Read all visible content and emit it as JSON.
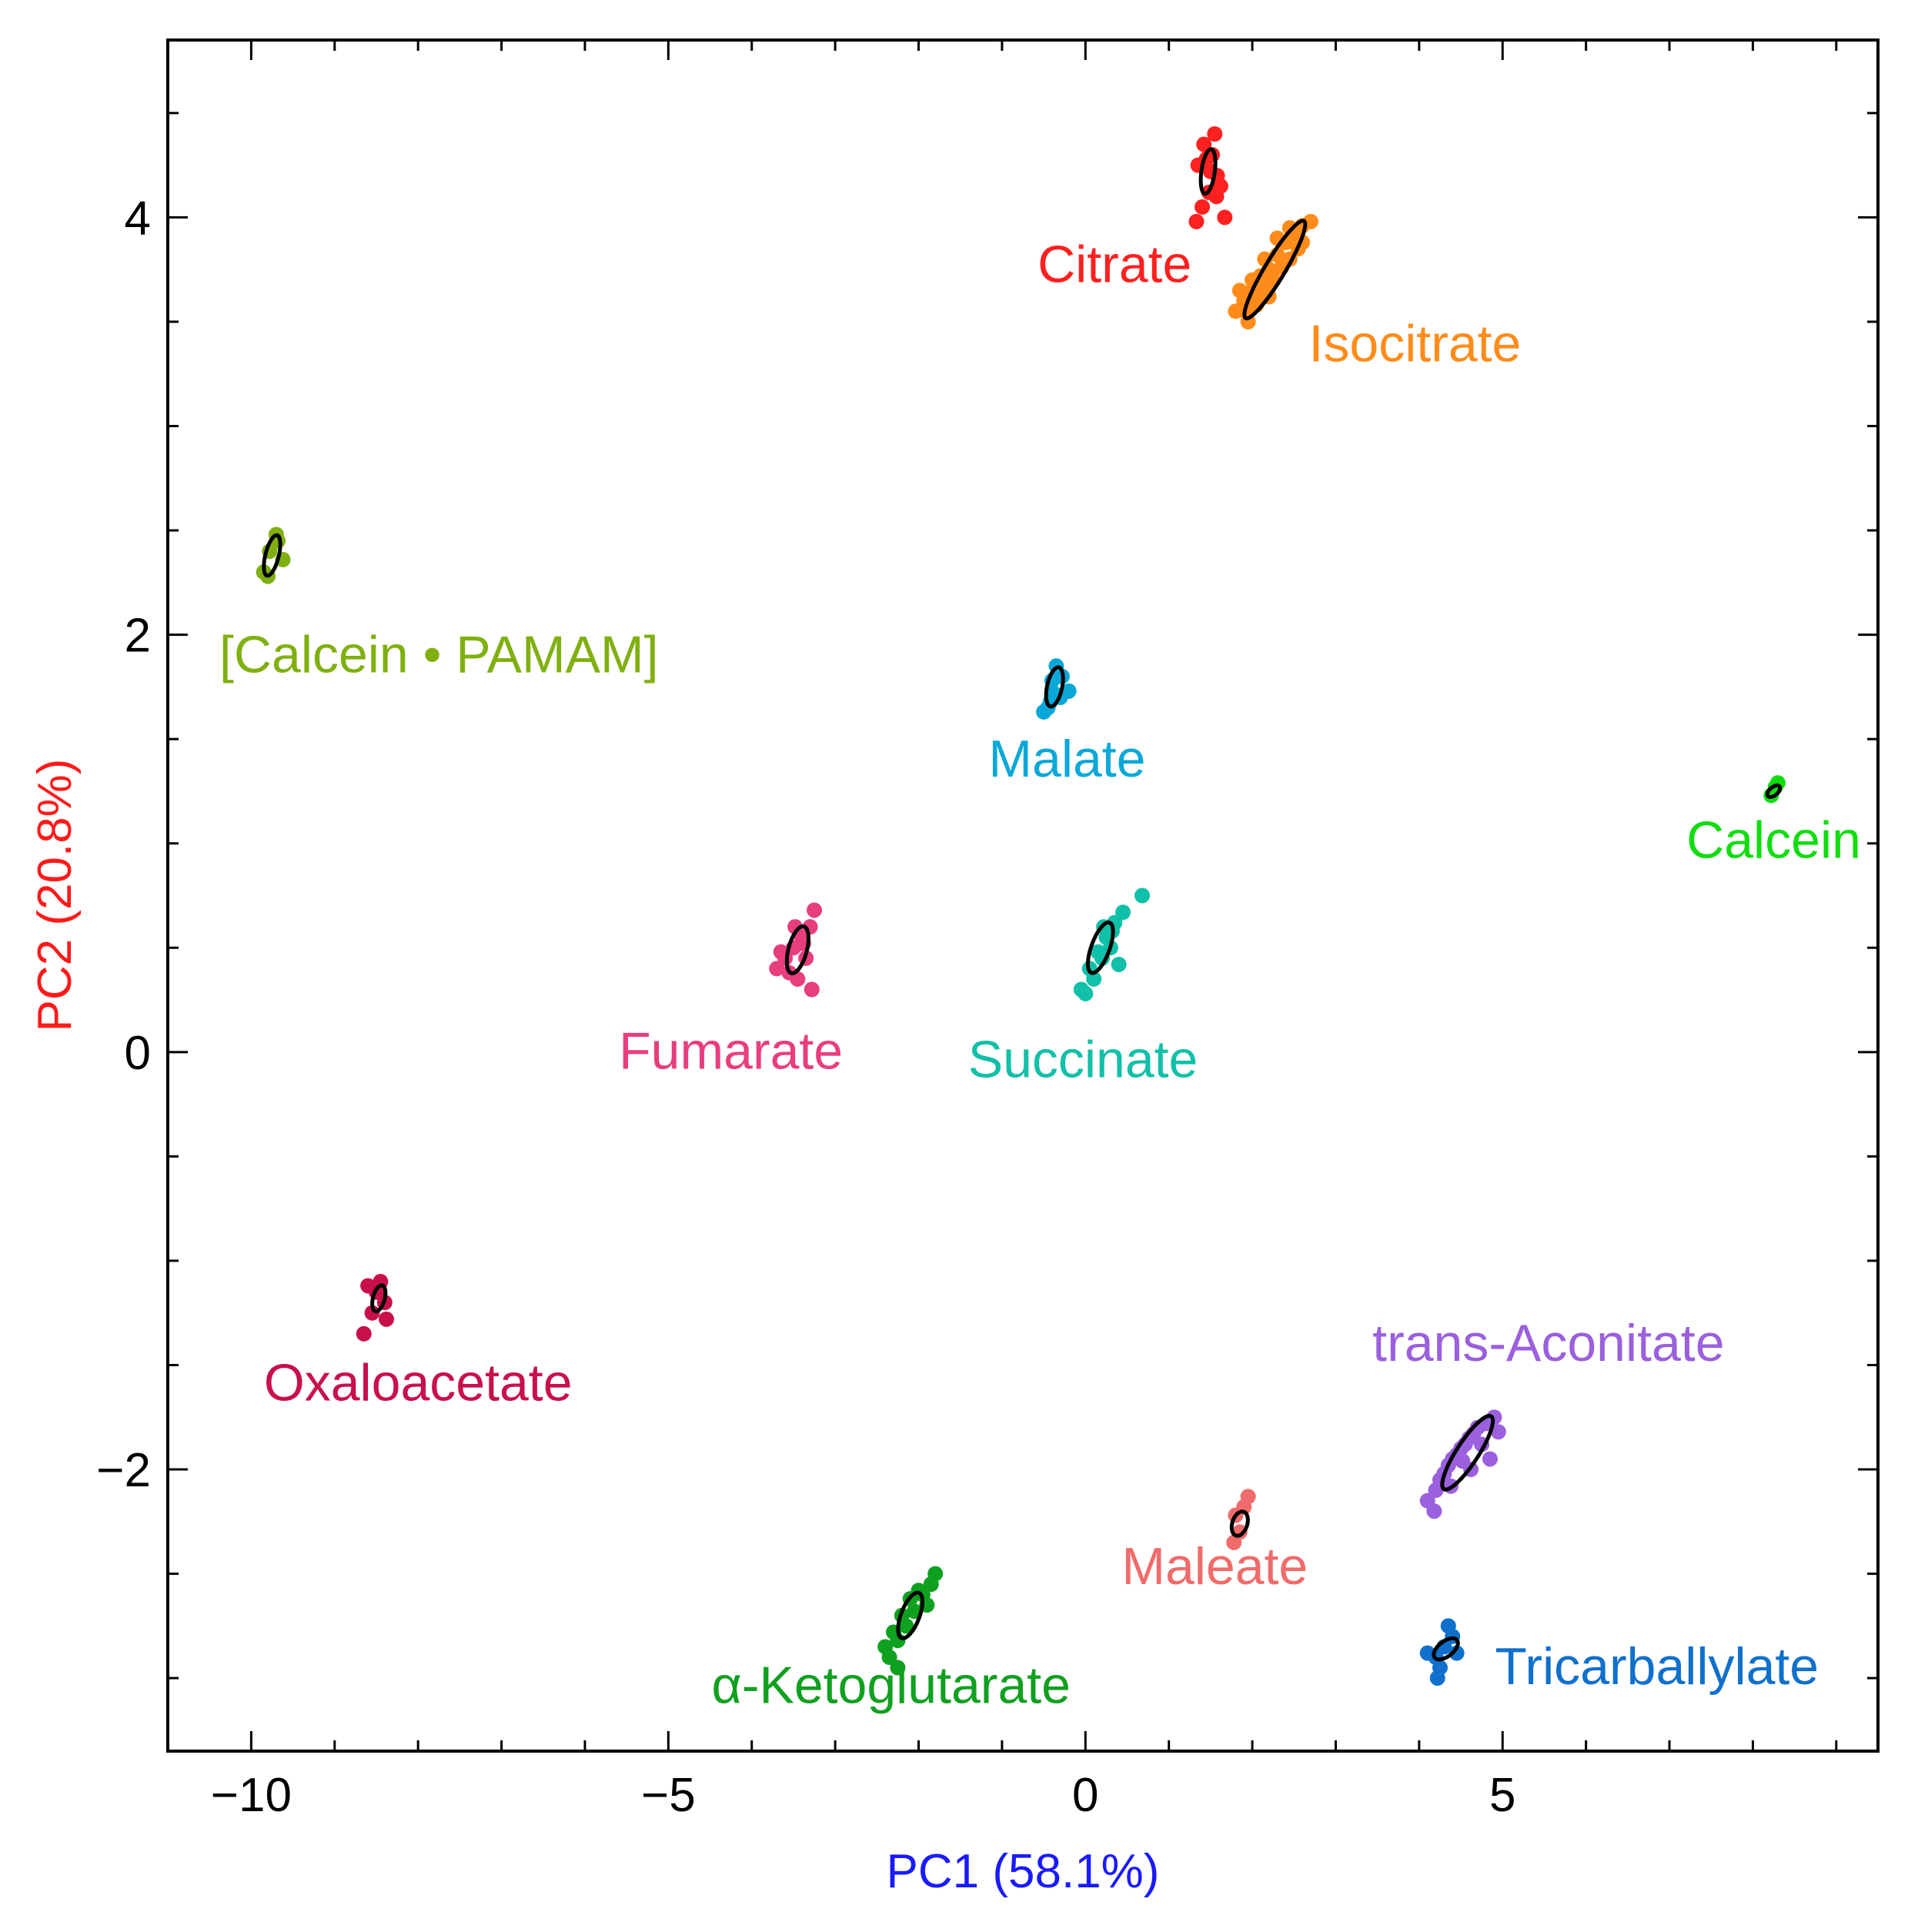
{
  "chart_data": {
    "type": "scatter",
    "title": "",
    "xlabel": "PC1 (58.1%)",
    "ylabel": "PC2 (20.8%)",
    "xlabel_color": "#1a1aff",
    "ylabel_color": "#ff1a1a",
    "xlim": [
      -11.0,
      9.5
    ],
    "ylim": [
      -3.35,
      4.85
    ],
    "xticks": [
      -10,
      -5,
      0,
      5
    ],
    "yticks": [
      -2,
      0,
      2,
      4
    ],
    "xtick_labels": [
      "−10",
      "−5",
      "0",
      "5"
    ],
    "ytick_labels": [
      "−2",
      "0",
      "2",
      "4"
    ],
    "x_minor_step": 1,
    "y_minor_step": 0.5,
    "grid": false,
    "legend": "none",
    "ellipse_color": "#000000",
    "groups": [
      {
        "name": "Citrate",
        "color": "#ff2020",
        "label": {
          "text": "Citrate",
          "x": 0.35,
          "y": 3.69,
          "anchor": "middle"
        },
        "ellipse": {
          "cx": 1.47,
          "cy": 4.22,
          "rx": 0.27,
          "ry": 0.08,
          "angle": 82
        },
        "points": [
          [
            1.35,
            4.25
          ],
          [
            1.42,
            4.35
          ],
          [
            1.52,
            4.3
          ],
          [
            1.58,
            4.2
          ],
          [
            1.48,
            4.12
          ],
          [
            1.4,
            4.05
          ],
          [
            1.55,
            4.4
          ],
          [
            1.62,
            4.15
          ],
          [
            1.33,
            3.98
          ],
          [
            1.67,
            4.0
          ],
          [
            1.5,
            4.22
          ],
          [
            1.45,
            4.28
          ],
          [
            1.57,
            4.1
          ]
        ]
      },
      {
        "name": "Isocitrate",
        "color": "#ff8c1a",
        "label": {
          "text": "Isocitrate",
          "x": 3.95,
          "y": 3.31,
          "anchor": "middle"
        },
        "ellipse": {
          "cx": 2.27,
          "cy": 3.75,
          "rx": 0.68,
          "ry": 0.12,
          "angle": 59
        },
        "points": [
          [
            1.8,
            3.55
          ],
          [
            1.9,
            3.6
          ],
          [
            2.0,
            3.65
          ],
          [
            2.1,
            3.72
          ],
          [
            2.2,
            3.75
          ],
          [
            2.3,
            3.82
          ],
          [
            2.4,
            3.88
          ],
          [
            2.5,
            3.92
          ],
          [
            2.6,
            3.96
          ],
          [
            2.7,
            3.98
          ],
          [
            1.95,
            3.5
          ],
          [
            2.05,
            3.58
          ],
          [
            2.15,
            3.66
          ],
          [
            2.25,
            3.7
          ],
          [
            2.35,
            3.76
          ],
          [
            2.45,
            3.8
          ],
          [
            2.55,
            3.85
          ],
          [
            1.85,
            3.65
          ],
          [
            2.0,
            3.7
          ],
          [
            2.15,
            3.8
          ],
          [
            2.3,
            3.9
          ],
          [
            2.45,
            3.95
          ],
          [
            2.05,
            3.6
          ],
          [
            2.6,
            3.88
          ],
          [
            2.2,
            3.62
          ],
          [
            1.92,
            3.55
          ]
        ]
      },
      {
        "name": "[Calcein • PAMAM]",
        "color": "#80b010",
        "label": {
          "text": "[Calcein • PAMAM]",
          "x": -7.75,
          "y": 1.82,
          "anchor": "middle"
        },
        "ellipse": {
          "cx": -9.75,
          "cy": 2.38,
          "rx": 0.25,
          "ry": 0.08,
          "angle": 76
        },
        "points": [
          [
            -9.7,
            2.48
          ],
          [
            -9.78,
            2.4
          ],
          [
            -9.85,
            2.3
          ],
          [
            -9.62,
            2.36
          ],
          [
            -9.8,
            2.28
          ],
          [
            -9.68,
            2.45
          ]
        ]
      },
      {
        "name": "Malate",
        "color": "#0aa8d8",
        "label": {
          "text": "Malate",
          "x": -0.22,
          "y": 1.32,
          "anchor": "middle"
        },
        "ellipse": {
          "cx": -0.37,
          "cy": 1.75,
          "rx": 0.24,
          "ry": 0.09,
          "angle": 78
        },
        "points": [
          [
            -0.4,
            1.78
          ],
          [
            -0.35,
            1.85
          ],
          [
            -0.3,
            1.7
          ],
          [
            -0.45,
            1.65
          ],
          [
            -0.5,
            1.63
          ],
          [
            -0.2,
            1.73
          ],
          [
            -0.38,
            1.72
          ],
          [
            -0.28,
            1.8
          ],
          [
            -0.42,
            1.68
          ]
        ]
      },
      {
        "name": "Calcein",
        "color": "#10dd10",
        "label": {
          "text": "Calcein",
          "x": 8.25,
          "y": 0.93,
          "anchor": "middle"
        },
        "ellipse": {
          "cx": 8.25,
          "cy": 1.25,
          "rx": 0.09,
          "ry": 0.05,
          "angle": 40
        },
        "points": [
          [
            8.22,
            1.23
          ],
          [
            8.27,
            1.27
          ],
          [
            8.3,
            1.29
          ]
        ]
      },
      {
        "name": "Fumarate",
        "color": "#e83e7e",
        "label": {
          "text": "Fumarate",
          "x": -4.25,
          "y": -0.08,
          "anchor": "middle"
        },
        "ellipse": {
          "cx": -3.45,
          "cy": 0.49,
          "rx": 0.29,
          "ry": 0.11,
          "angle": 75
        },
        "points": [
          [
            -3.7,
            0.4
          ],
          [
            -3.6,
            0.45
          ],
          [
            -3.5,
            0.5
          ],
          [
            -3.4,
            0.55
          ],
          [
            -3.3,
            0.6
          ],
          [
            -3.25,
            0.68
          ],
          [
            -3.55,
            0.38
          ],
          [
            -3.35,
            0.45
          ],
          [
            -3.45,
            0.35
          ],
          [
            -3.28,
            0.3
          ],
          [
            -3.65,
            0.48
          ],
          [
            -3.38,
            0.52
          ],
          [
            -3.48,
            0.6
          ]
        ]
      },
      {
        "name": "Succinate",
        "color": "#10c0a8",
        "label": {
          "text": "Succinate",
          "x": -0.03,
          "y": -0.12,
          "anchor": "middle"
        },
        "ellipse": {
          "cx": 0.18,
          "cy": 0.5,
          "rx": 0.32,
          "ry": 0.11,
          "angle": 70
        },
        "points": [
          [
            -0.05,
            0.3
          ],
          [
            0.05,
            0.4
          ],
          [
            0.15,
            0.48
          ],
          [
            0.25,
            0.55
          ],
          [
            0.35,
            0.62
          ],
          [
            0.45,
            0.67
          ],
          [
            0.68,
            0.75
          ],
          [
            0.1,
            0.35
          ],
          [
            0.2,
            0.45
          ],
          [
            0.3,
            0.5
          ],
          [
            0.4,
            0.42
          ],
          [
            0.0,
            0.28
          ],
          [
            0.22,
            0.6
          ],
          [
            0.32,
            0.58
          ]
        ]
      },
      {
        "name": "Oxaloacetate",
        "color": "#c8104a",
        "label": {
          "text": "Oxaloacetate",
          "x": -8.0,
          "y": -1.67,
          "anchor": "middle"
        },
        "ellipse": {
          "cx": -8.47,
          "cy": -1.18,
          "rx": 0.16,
          "ry": 0.07,
          "angle": 75
        },
        "points": [
          [
            -8.5,
            -1.15
          ],
          [
            -8.45,
            -1.1
          ],
          [
            -8.4,
            -1.2
          ],
          [
            -8.55,
            -1.25
          ],
          [
            -8.6,
            -1.12
          ],
          [
            -8.65,
            -1.35
          ],
          [
            -8.38,
            -1.28
          ]
        ]
      },
      {
        "name": "trans-Aconitate",
        "color": "#9a60dd",
        "label": {
          "text": "trans-Aconitate",
          "x": 5.55,
          "y": -1.48,
          "anchor": "middle"
        },
        "ellipse": {
          "cx": 4.58,
          "cy": -1.92,
          "rx": 0.52,
          "ry": 0.13,
          "angle": 57
        },
        "points": [
          [
            4.1,
            -2.15
          ],
          [
            4.2,
            -2.1
          ],
          [
            4.3,
            -2.02
          ],
          [
            4.4,
            -1.95
          ],
          [
            4.5,
            -1.9
          ],
          [
            4.6,
            -1.85
          ],
          [
            4.7,
            -1.8
          ],
          [
            4.8,
            -1.78
          ],
          [
            4.9,
            -1.75
          ],
          [
            4.95,
            -1.82
          ],
          [
            4.25,
            -2.05
          ],
          [
            4.35,
            -1.98
          ],
          [
            4.45,
            -1.93
          ],
          [
            4.55,
            -1.88
          ],
          [
            4.65,
            -1.83
          ],
          [
            4.75,
            -1.88
          ],
          [
            4.85,
            -1.95
          ],
          [
            4.62,
            -2.0
          ],
          [
            4.38,
            -2.08
          ],
          [
            4.52,
            -1.96
          ],
          [
            4.18,
            -2.2
          ]
        ]
      },
      {
        "name": "Maleate",
        "color": "#f06b6b",
        "label": {
          "text": "Maleate",
          "x": 1.55,
          "y": -2.55,
          "anchor": "middle"
        },
        "ellipse": {
          "cx": 1.85,
          "cy": -2.26,
          "rx": 0.15,
          "ry": 0.09,
          "angle": 72
        },
        "points": [
          [
            1.8,
            -2.22
          ],
          [
            1.9,
            -2.18
          ],
          [
            1.85,
            -2.3
          ],
          [
            1.95,
            -2.13
          ],
          [
            1.78,
            -2.35
          ]
        ]
      },
      {
        "name": "α-Ketoglutarate",
        "color": "#10a020",
        "label": {
          "text": "α-Ketoglutarate",
          "x": -2.33,
          "y": -3.12,
          "anchor": "middle"
        },
        "ellipse": {
          "cx": -2.1,
          "cy": -2.7,
          "rx": 0.29,
          "ry": 0.11,
          "angle": 69
        },
        "points": [
          [
            -2.35,
            -2.9
          ],
          [
            -2.25,
            -2.82
          ],
          [
            -2.15,
            -2.75
          ],
          [
            -2.05,
            -2.68
          ],
          [
            -1.95,
            -2.6
          ],
          [
            -1.85,
            -2.55
          ],
          [
            -2.3,
            -2.78
          ],
          [
            -2.2,
            -2.7
          ],
          [
            -2.1,
            -2.62
          ],
          [
            -2.0,
            -2.58
          ],
          [
            -1.9,
            -2.65
          ],
          [
            -2.25,
            -2.95
          ],
          [
            -2.4,
            -2.85
          ],
          [
            -1.8,
            -2.5
          ]
        ]
      },
      {
        "name": "Tricarballylate",
        "color": "#1070cc",
        "label": {
          "text": "Tricarballylate",
          "x": 6.85,
          "y": -3.03,
          "anchor": "middle"
        },
        "ellipse": {
          "cx": 4.32,
          "cy": -2.86,
          "rx": 0.17,
          "ry": 0.09,
          "angle": 38
        },
        "points": [
          [
            4.2,
            -2.9
          ],
          [
            4.3,
            -2.85
          ],
          [
            4.4,
            -2.8
          ],
          [
            4.25,
            -2.95
          ],
          [
            4.35,
            -2.75
          ],
          [
            4.1,
            -2.88
          ],
          [
            4.45,
            -2.88
          ],
          [
            4.22,
            -3.0
          ]
        ]
      }
    ]
  }
}
